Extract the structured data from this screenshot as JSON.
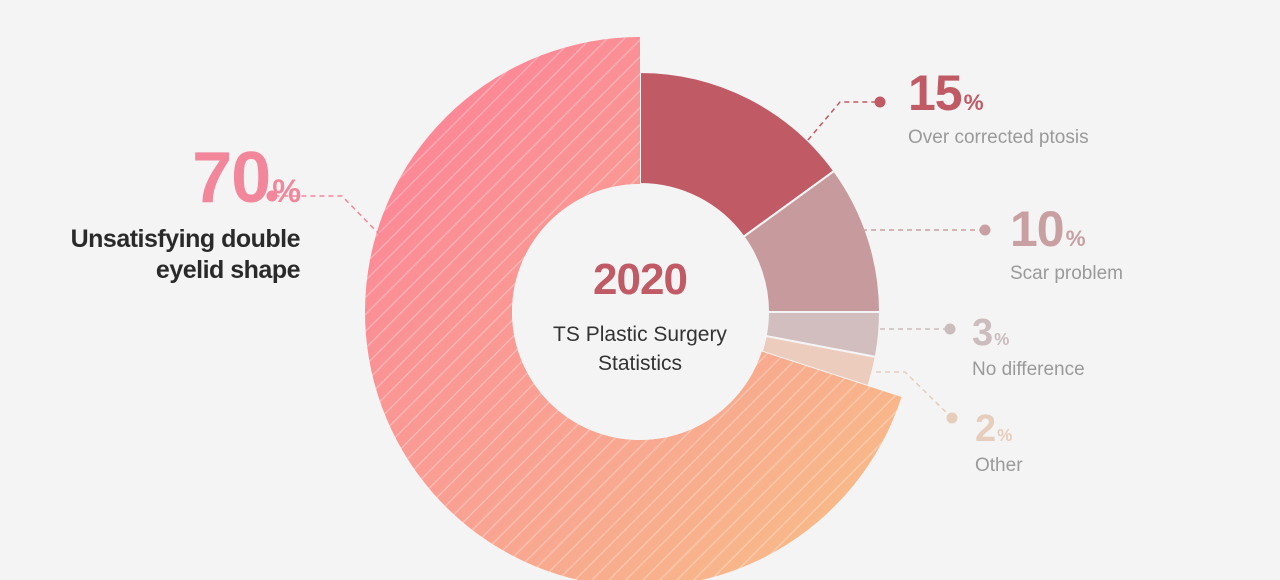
{
  "center": {
    "year": "2020",
    "line1": "TS Plastic Surgery",
    "line2": "Statistics"
  },
  "chart_data": {
    "type": "pie",
    "title": "",
    "slices": [
      {
        "label": "Unsatisfying double eyelid shape",
        "label_line1": "Unsatisfying double",
        "label_line2": "eyelid shape",
        "value": 70,
        "pct_text": "70",
        "color": "#f4a388",
        "gradient": [
          "#fb8499",
          "#f7c085"
        ],
        "text_color": "#f2869b"
      },
      {
        "label": "Over corrected ptosis",
        "value": 15,
        "pct_text": "15",
        "color": "#c05a65",
        "text_color": "#c05a65"
      },
      {
        "label": "Scar problem",
        "value": 10,
        "pct_text": "10",
        "color": "#c79a9d",
        "text_color": "#c9a0a2"
      },
      {
        "label": "No difference",
        "value": 3,
        "pct_text": "3",
        "color": "#d2bebf",
        "text_color": "#cbbcbd"
      },
      {
        "label": "Other",
        "value": 2,
        "pct_text": "2",
        "color": "#ecccbc",
        "text_color": "#e6cdbc"
      }
    ],
    "percent_symbol": "%"
  }
}
